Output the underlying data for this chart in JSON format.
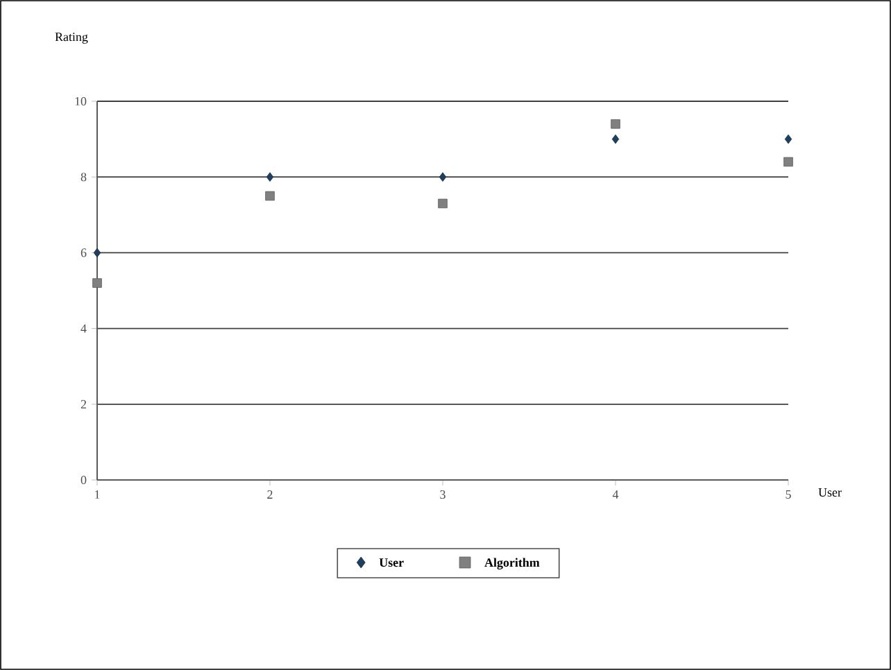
{
  "chart_data": {
    "type": "scatter",
    "xlabel": "User",
    "ylabel": "Rating",
    "x": [
      1,
      2,
      3,
      4,
      5
    ],
    "xlim": [
      1,
      5
    ],
    "xticks": [
      1,
      2,
      3,
      4,
      5
    ],
    "ylim": [
      0,
      10
    ],
    "yticks": [
      0,
      2,
      4,
      6,
      8,
      10
    ],
    "grid": "y",
    "legend": "bottom",
    "series": [
      {
        "name": "User",
        "color": "#1f3f5f",
        "marker": "diamond",
        "values": [
          6.0,
          8.0,
          8.0,
          9.0,
          9.0
        ]
      },
      {
        "name": "Algorithm",
        "color": "#808080",
        "marker": "square",
        "values": [
          5.2,
          7.5,
          7.3,
          9.4,
          8.4
        ]
      }
    ]
  }
}
